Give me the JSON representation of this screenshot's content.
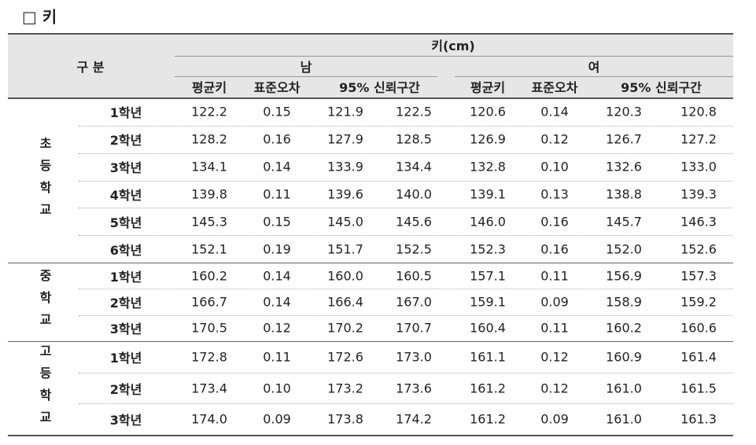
{
  "title": "□ 키",
  "table": {
    "header": {
      "measure": "키(cm)",
      "group_label": "구 분",
      "sexes": [
        "남",
        "여"
      ],
      "columns": [
        "평균키",
        "표준오차",
        "95% 신뢰구간"
      ]
    },
    "sections": [
      {
        "name": "초등학교",
        "rows": [
          {
            "grade": "1학년",
            "values": [
              "122.2",
              "0.15",
              "121.9",
              "122.5",
              "120.6",
              "0.14",
              "120.3",
              "120.8"
            ]
          },
          {
            "grade": "2학년",
            "values": [
              "128.2",
              "0.16",
              "127.9",
              "128.5",
              "126.9",
              "0.12",
              "126.7",
              "127.2"
            ]
          },
          {
            "grade": "3학년",
            "values": [
              "134.1",
              "0.14",
              "133.9",
              "134.4",
              "132.8",
              "0.10",
              "132.6",
              "133.0"
            ]
          },
          {
            "grade": "4학년",
            "values": [
              "139.8",
              "0.11",
              "139.6",
              "140.0",
              "139.1",
              "0.13",
              "138.8",
              "139.3"
            ]
          },
          {
            "grade": "5학년",
            "values": [
              "145.3",
              "0.15",
              "145.0",
              "145.6",
              "146.0",
              "0.16",
              "145.7",
              "146.3"
            ]
          },
          {
            "grade": "6학년",
            "values": [
              "152.1",
              "0.19",
              "151.7",
              "152.5",
              "152.3",
              "0.16",
              "152.0",
              "152.6"
            ]
          }
        ]
      },
      {
        "name": "중학교",
        "rows": [
          {
            "grade": "1학년",
            "values": [
              "160.2",
              "0.14",
              "160.0",
              "160.5",
              "157.1",
              "0.11",
              "156.9",
              "157.3"
            ]
          },
          {
            "grade": "2학년",
            "values": [
              "166.7",
              "0.14",
              "166.4",
              "167.0",
              "159.1",
              "0.09",
              "158.9",
              "159.2"
            ]
          },
          {
            "grade": "3학년",
            "values": [
              "170.5",
              "0.12",
              "170.2",
              "170.7",
              "160.4",
              "0.11",
              "160.2",
              "160.6"
            ]
          }
        ]
      },
      {
        "name": "고등학교",
        "rows": [
          {
            "grade": "1학년",
            "values": [
              "172.8",
              "0.11",
              "172.6",
              "173.0",
              "161.1",
              "0.12",
              "160.9",
              "161.4"
            ]
          },
          {
            "grade": "2학년",
            "values": [
              "173.4",
              "0.10",
              "173.2",
              "173.6",
              "161.2",
              "0.12",
              "161.0",
              "161.5"
            ]
          },
          {
            "grade": "3학년",
            "values": [
              "174.0",
              "0.09",
              "173.8",
              "174.2",
              "161.2",
              "0.09",
              "161.0",
              "161.3"
            ]
          }
        ]
      }
    ]
  }
}
